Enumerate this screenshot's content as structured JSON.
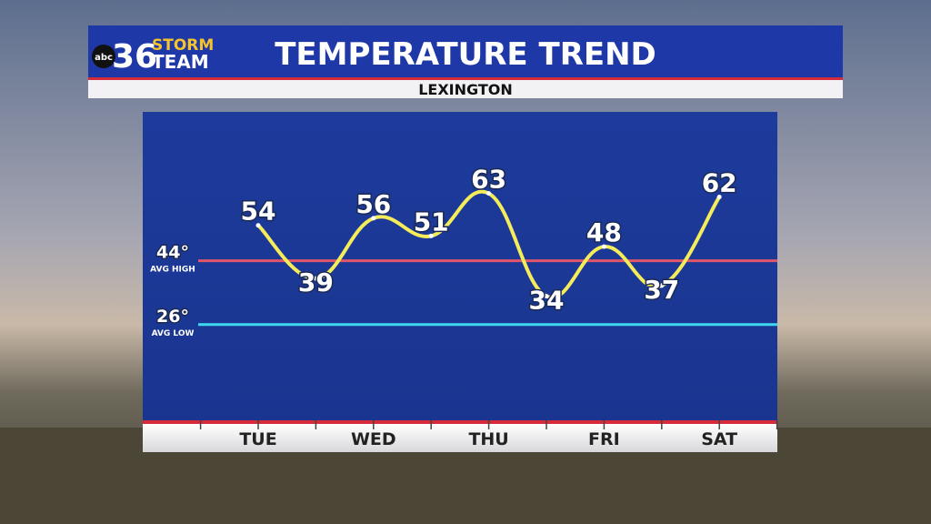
{
  "logo": {
    "network": "abc",
    "channel": "36",
    "line1": "STORM",
    "line2": "TEAM"
  },
  "chart_data": {
    "type": "line",
    "title": "TEMPERATURE TREND",
    "subtitle": "LEXINGTON",
    "categories": [
      "TUE",
      null,
      "WED",
      null,
      "THU",
      null,
      "FRI",
      null,
      "SAT"
    ],
    "values": [
      54,
      39,
      56,
      51,
      63,
      34,
      48,
      37,
      62
    ],
    "color": "#f5ec5a",
    "ylim": [
      -1,
      86
    ],
    "reference_lines": [
      {
        "value": 44,
        "label": "44°",
        "name": "AVG HIGH",
        "color": "#e0566a"
      },
      {
        "value": 26,
        "label": "26°",
        "name": "AVG LOW",
        "color": "#3fd8f0"
      }
    ]
  }
}
